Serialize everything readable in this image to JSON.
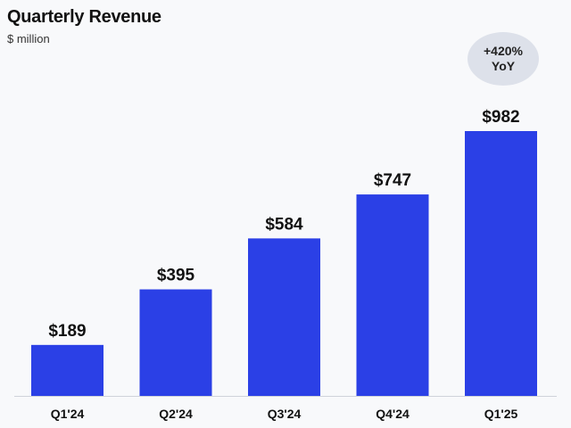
{
  "chart_data": {
    "type": "bar",
    "title": "Quarterly Revenue",
    "subtitle": "$ million",
    "categories": [
      "Q1'24",
      "Q2'24",
      "Q3'24",
      "Q4'24",
      "Q1'25"
    ],
    "values": [
      189,
      395,
      584,
      747,
      982
    ],
    "value_labels": [
      "$189",
      "$395",
      "$584",
      "$747",
      "$982"
    ],
    "ylim": [
      0,
      1000
    ],
    "grid": false,
    "bar_color": "#2b40e6",
    "annotation": {
      "line1": "+420%",
      "line2": "YoY",
      "background": "#dde1ea"
    }
  }
}
